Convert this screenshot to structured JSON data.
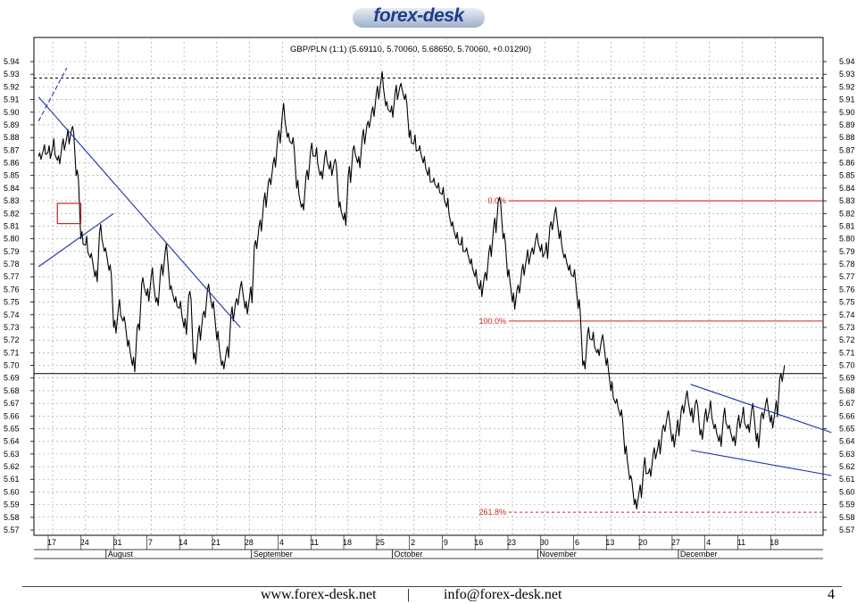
{
  "logo": {
    "text": "forex-desk"
  },
  "footer": {
    "website": "www.forex-desk.net",
    "separator": "|",
    "email": "info@forex-desk.net",
    "page_number": "4"
  },
  "colors": {
    "price": "#000000",
    "trendline": "#2233aa",
    "fibonacci": "#cc2222",
    "grid": "#9a9a9a"
  },
  "chart_data": {
    "type": "line",
    "title": "GBP/PLN (1:1) (5.69110, 5.70060, 5.68650, 5.70060, +0.01290)",
    "ylim": [
      5.57,
      5.94
    ],
    "y_ticks": [
      "5.57",
      "5.58",
      "5.59",
      "5.60",
      "5.61",
      "5.62",
      "5.63",
      "5.64",
      "5.65",
      "5.66",
      "5.67",
      "5.68",
      "5.69",
      "5.70",
      "5.71",
      "5.72",
      "5.73",
      "5.74",
      "5.75",
      "5.76",
      "5.77",
      "5.78",
      "5.79",
      "5.80",
      "5.81",
      "5.82",
      "5.83",
      "5.84",
      "5.85",
      "5.86",
      "5.87",
      "5.88",
      "5.89",
      "5.90",
      "5.91",
      "5.92",
      "5.93",
      "5.94"
    ],
    "x_day_ticks": [
      {
        "label": "17",
        "day": 0
      },
      {
        "label": "24",
        "day": 7
      },
      {
        "label": "31",
        "day": 14
      },
      {
        "label": "7",
        "day": 21
      },
      {
        "label": "14",
        "day": 28
      },
      {
        "label": "21",
        "day": 35
      },
      {
        "label": "28",
        "day": 42
      },
      {
        "label": "4",
        "day": 49
      },
      {
        "label": "11",
        "day": 56
      },
      {
        "label": "18",
        "day": 63
      },
      {
        "label": "25",
        "day": 70
      },
      {
        "label": "2",
        "day": 77
      },
      {
        "label": "9",
        "day": 84
      },
      {
        "label": "16",
        "day": 91
      },
      {
        "label": "23",
        "day": 98
      },
      {
        "label": "30",
        "day": 105
      },
      {
        "label": "6",
        "day": 112
      },
      {
        "label": "13",
        "day": 119
      },
      {
        "label": "20",
        "day": 126
      },
      {
        "label": "27",
        "day": 133
      },
      {
        "label": "4",
        "day": 140
      },
      {
        "label": "11",
        "day": 147
      },
      {
        "label": "18",
        "day": 154
      }
    ],
    "month_labels": [
      {
        "label": "August",
        "day": 15
      },
      {
        "label": "September",
        "day": 46
      },
      {
        "label": "October",
        "day": 76
      },
      {
        "label": "November",
        "day": 107
      },
      {
        "label": "December",
        "day": 137
      }
    ],
    "series": [
      {
        "points": [
          [
            -3,
            5.865
          ],
          [
            -2,
            5.87
          ],
          [
            -1,
            5.868
          ],
          [
            0,
            5.872
          ],
          [
            1,
            5.862
          ],
          [
            2,
            5.874
          ],
          [
            3,
            5.88
          ],
          [
            4,
            5.886
          ],
          [
            5,
            5.85
          ],
          [
            6,
            5.8
          ],
          [
            7,
            5.795
          ],
          [
            8,
            5.785
          ],
          [
            9,
            5.77
          ],
          [
            10,
            5.805
          ],
          [
            11,
            5.79
          ],
          [
            12,
            5.775
          ],
          [
            13,
            5.73
          ],
          [
            14,
            5.745
          ],
          [
            15,
            5.735
          ],
          [
            16,
            5.715
          ],
          [
            17,
            5.7
          ],
          [
            18,
            5.73
          ],
          [
            19,
            5.765
          ],
          [
            20,
            5.755
          ],
          [
            21,
            5.77
          ],
          [
            22,
            5.75
          ],
          [
            23,
            5.775
          ],
          [
            24,
            5.79
          ],
          [
            25,
            5.76
          ],
          [
            26,
            5.75
          ],
          [
            27,
            5.745
          ],
          [
            28,
            5.73
          ],
          [
            29,
            5.755
          ],
          [
            30,
            5.705
          ],
          [
            31,
            5.725
          ],
          [
            32,
            5.74
          ],
          [
            33,
            5.76
          ],
          [
            34,
            5.745
          ],
          [
            35,
            5.72
          ],
          [
            36,
            5.7
          ],
          [
            37,
            5.71
          ],
          [
            38,
            5.74
          ],
          [
            39,
            5.75
          ],
          [
            40,
            5.762
          ],
          [
            41,
            5.745
          ],
          [
            42,
            5.755
          ],
          [
            43,
            5.795
          ],
          [
            44,
            5.81
          ],
          [
            45,
            5.83
          ],
          [
            46,
            5.845
          ],
          [
            47,
            5.86
          ],
          [
            48,
            5.88
          ],
          [
            49,
            5.9
          ],
          [
            50,
            5.88
          ],
          [
            51,
            5.875
          ],
          [
            52,
            5.84
          ],
          [
            53,
            5.825
          ],
          [
            54,
            5.85
          ],
          [
            55,
            5.87
          ],
          [
            56,
            5.865
          ],
          [
            57,
            5.85
          ],
          [
            58,
            5.865
          ],
          [
            59,
            5.855
          ],
          [
            60,
            5.86
          ],
          [
            61,
            5.825
          ],
          [
            62,
            5.815
          ],
          [
            63,
            5.85
          ],
          [
            64,
            5.87
          ],
          [
            65,
            5.86
          ],
          [
            66,
            5.88
          ],
          [
            67,
            5.89
          ],
          [
            68,
            5.9
          ],
          [
            69,
            5.915
          ],
          [
            70,
            5.925
          ],
          [
            71,
            5.905
          ],
          [
            72,
            5.9
          ],
          [
            73,
            5.915
          ],
          [
            74,
            5.92
          ],
          [
            75,
            5.91
          ],
          [
            76,
            5.88
          ],
          [
            77,
            5.875
          ],
          [
            78,
            5.87
          ],
          [
            79,
            5.86
          ],
          [
            80,
            5.85
          ],
          [
            81,
            5.845
          ],
          [
            82,
            5.84
          ],
          [
            83,
            5.835
          ],
          [
            84,
            5.825
          ],
          [
            85,
            5.81
          ],
          [
            86,
            5.8
          ],
          [
            87,
            5.795
          ],
          [
            88,
            5.79
          ],
          [
            89,
            5.78
          ],
          [
            90,
            5.77
          ],
          [
            91,
            5.76
          ],
          [
            92,
            5.77
          ],
          [
            93,
            5.79
          ],
          [
            94,
            5.81
          ],
          [
            95,
            5.83
          ],
          [
            96,
            5.8
          ],
          [
            97,
            5.77
          ],
          [
            98,
            5.75
          ],
          [
            99,
            5.76
          ],
          [
            100,
            5.775
          ],
          [
            101,
            5.785
          ],
          [
            102,
            5.79
          ],
          [
            103,
            5.8
          ],
          [
            104,
            5.79
          ],
          [
            105,
            5.79
          ],
          [
            106,
            5.81
          ],
          [
            107,
            5.82
          ],
          [
            108,
            5.8
          ],
          [
            109,
            5.785
          ],
          [
            110,
            5.775
          ],
          [
            111,
            5.77
          ],
          [
            112,
            5.745
          ],
          [
            113,
            5.7
          ],
          [
            114,
            5.725
          ],
          [
            115,
            5.72
          ],
          [
            116,
            5.71
          ],
          [
            117,
            5.72
          ],
          [
            118,
            5.7
          ],
          [
            119,
            5.68
          ],
          [
            120,
            5.67
          ],
          [
            121,
            5.66
          ],
          [
            122,
            5.63
          ],
          [
            123,
            5.61
          ],
          [
            124,
            5.59
          ],
          [
            125,
            5.6
          ],
          [
            126,
            5.62
          ],
          [
            127,
            5.615
          ],
          [
            128,
            5.63
          ],
          [
            129,
            5.635
          ],
          [
            130,
            5.65
          ],
          [
            131,
            5.66
          ],
          [
            132,
            5.64
          ],
          [
            133,
            5.65
          ],
          [
            134,
            5.665
          ],
          [
            135,
            5.675
          ],
          [
            136,
            5.66
          ],
          [
            137,
            5.67
          ],
          [
            138,
            5.645
          ],
          [
            139,
            5.66
          ],
          [
            140,
            5.665
          ],
          [
            141,
            5.65
          ],
          [
            142,
            5.64
          ],
          [
            143,
            5.66
          ],
          [
            144,
            5.65
          ],
          [
            145,
            5.64
          ],
          [
            146,
            5.655
          ],
          [
            147,
            5.66
          ],
          [
            148,
            5.65
          ],
          [
            149,
            5.665
          ],
          [
            150,
            5.64
          ],
          [
            151,
            5.66
          ],
          [
            152,
            5.67
          ],
          [
            153,
            5.655
          ],
          [
            154,
            5.665
          ],
          [
            155,
            5.69
          ],
          [
            156,
            5.7
          ]
        ]
      }
    ],
    "close_line": 5.6935,
    "top_dotted_line": 5.927,
    "fibonacci": [
      {
        "label": "0.0%",
        "value": 5.83,
        "from_day": 98
      },
      {
        "label": "100.0%",
        "value": 5.735,
        "from_day": 98
      },
      {
        "label": "261.8%",
        "value": 5.584,
        "from_day": 98
      }
    ],
    "trendlines": [
      {
        "name": "descending-trendline",
        "from": [
          -3,
          5.912
        ],
        "to": [
          40,
          5.73
        ]
      },
      {
        "name": "small-support-line",
        "from": [
          -3,
          5.778
        ],
        "to": [
          13,
          5.82
        ]
      },
      {
        "name": "dashed-extension",
        "from": [
          -3,
          5.893
        ],
        "to": [
          3,
          5.935
        ],
        "dashed": true
      },
      {
        "name": "upper-channel-line",
        "from": [
          136,
          5.685
        ],
        "to": [
          166,
          5.647
        ]
      },
      {
        "name": "lower-channel-line",
        "from": [
          136,
          5.633
        ],
        "to": [
          166,
          5.613
        ]
      }
    ],
    "highlight_box": {
      "from_day": 1,
      "to_day": 6,
      "y_top": 5.828,
      "y_bottom": 5.812
    },
    "grid": true
  }
}
